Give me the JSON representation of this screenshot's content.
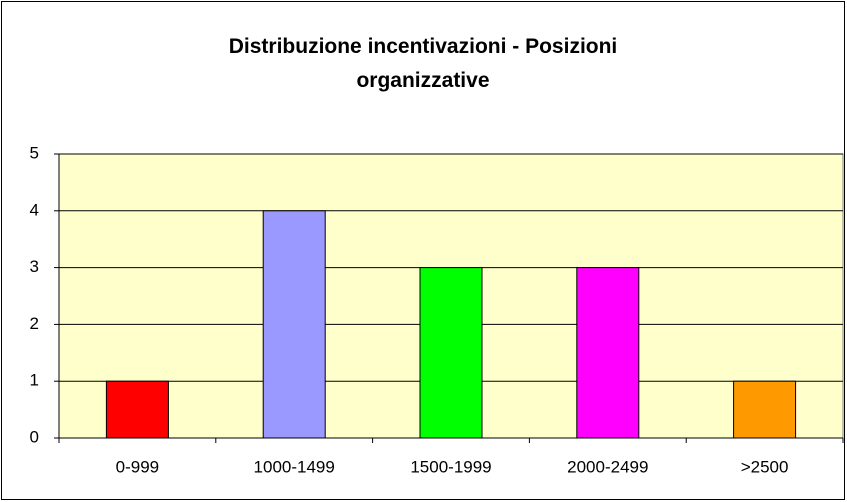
{
  "chart_data": {
    "type": "bar",
    "title": "Distribuzione incentivazioni - Posizioni organizzative",
    "categories": [
      "0-999",
      "1000-1499",
      "1500-1999",
      "2000-2499",
      ">2500"
    ],
    "values": [
      1,
      4,
      3,
      3,
      1
    ],
    "colors": [
      "#ff0000",
      "#9999ff",
      "#00ff00",
      "#ff00ff",
      "#ff9900"
    ],
    "ylim": [
      0,
      5
    ],
    "yticks": [
      0,
      1,
      2,
      3,
      4,
      5
    ],
    "grid": true
  }
}
